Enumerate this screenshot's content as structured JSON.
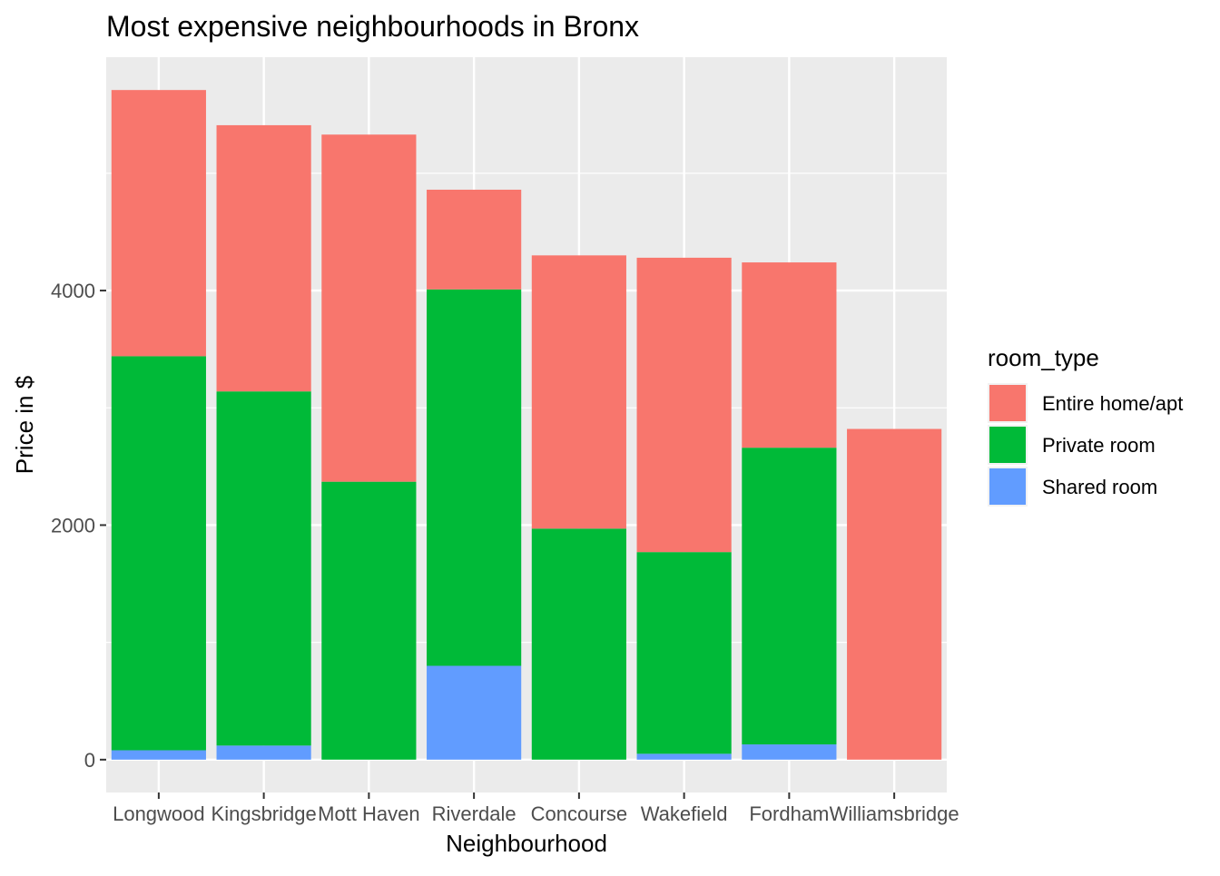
{
  "chart_data": {
    "type": "bar",
    "stacked": true,
    "title": "Most expensive neighbourhoods in Bronx",
    "xlabel": "Neighbourhood",
    "ylabel": "Price in $",
    "categories": [
      "Longwood",
      "Kingsbridge",
      "Mott Haven",
      "Riverdale",
      "Concourse",
      "Wakefield",
      "Fordham",
      "Williamsbridge"
    ],
    "series": [
      {
        "name": "Shared room",
        "color": "#619CFF",
        "values": [
          80,
          120,
          0,
          800,
          0,
          50,
          130,
          0
        ]
      },
      {
        "name": "Private room",
        "color": "#00BA38",
        "values": [
          3360,
          3020,
          2370,
          3210,
          1970,
          1720,
          2530,
          0
        ]
      },
      {
        "name": "Entire home/apt",
        "color": "#F8766D",
        "values": [
          2270,
          2270,
          2960,
          850,
          2330,
          2510,
          1580,
          2820
        ]
      }
    ],
    "ylim": [
      -280,
      5990
    ],
    "yticks": [
      0,
      2000,
      4000
    ],
    "grid": true,
    "legend": {
      "title": "room_type",
      "position": "right",
      "entries": [
        "Entire home/apt",
        "Private room",
        "Shared room"
      ]
    },
    "colors": {
      "panel_background": "#EBEBEB",
      "grid_line": "#FFFFFF",
      "axis_text": "#4D4D4D"
    }
  }
}
